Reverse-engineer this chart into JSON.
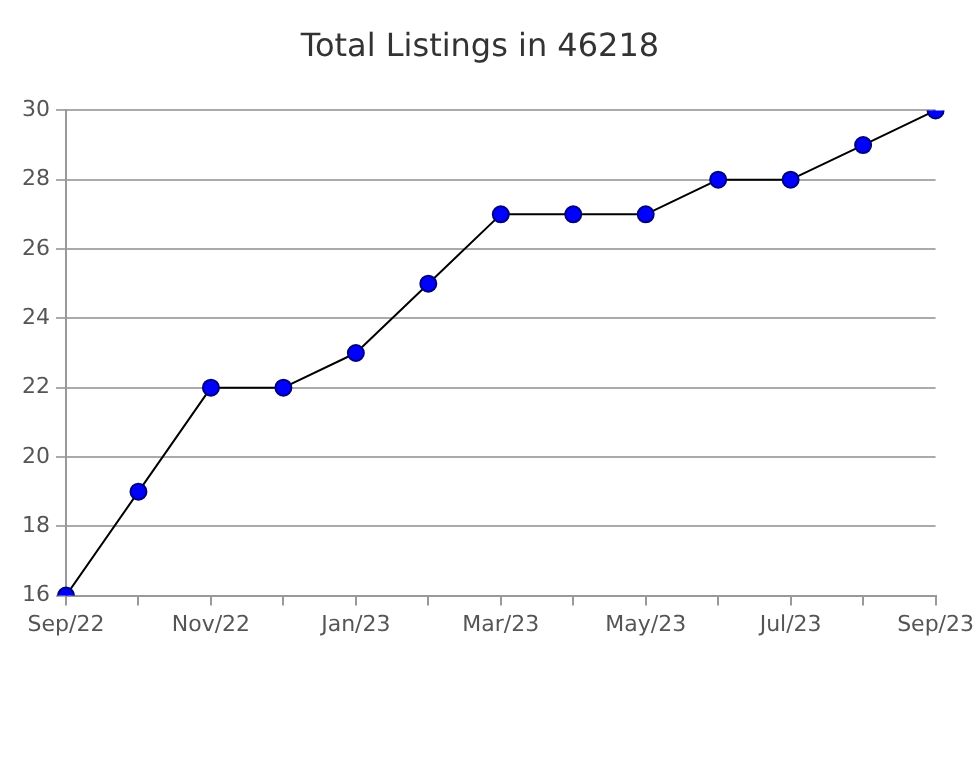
{
  "chart_data": {
    "type": "line",
    "title": "Total Listings in 46218",
    "categories": [
      "Sep/22",
      null,
      "Nov/22",
      null,
      "Jan/23",
      null,
      "Mar/23",
      null,
      "May/23",
      null,
      "Jul/23",
      null,
      "Sep/23"
    ],
    "values": [
      16,
      19,
      22,
      22,
      23,
      25,
      27,
      27,
      27,
      28,
      28,
      29,
      30
    ],
    "color": "#0000ff",
    "ylim": [
      16,
      30
    ],
    "yticks": [
      16,
      18,
      20,
      22,
      24,
      26,
      28,
      30
    ],
    "grid": "y",
    "marker": "circle",
    "line_style": "solid",
    "legend": false
  }
}
